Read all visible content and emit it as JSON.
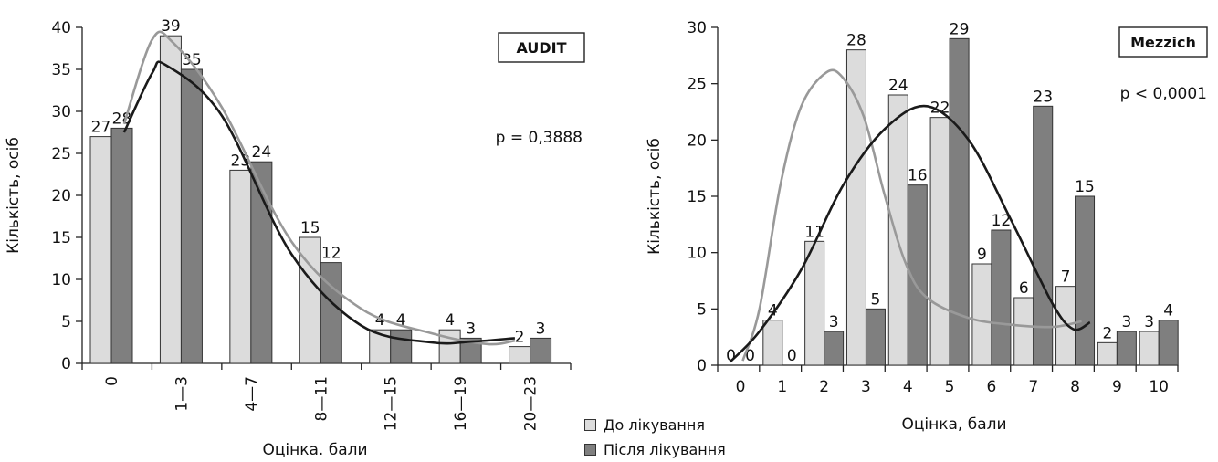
{
  "legend": {
    "items": [
      {
        "label": "До лікування",
        "color": "#dcdcdc"
      },
      {
        "label": "Після лікування",
        "color": "#7f7f7f"
      }
    ]
  },
  "chart_data": [
    {
      "type": "bar",
      "title": "AUDIT",
      "annotation": "p = 0,3888",
      "xlabel": "Оцінка. бали",
      "ylabel": "Кількість, осіб",
      "categories": [
        "0",
        "1—3",
        "4—7",
        "8—11",
        "12—15",
        "16—19",
        "20—23"
      ],
      "ylim": [
        0,
        40
      ],
      "yticks": [
        0,
        5,
        10,
        15,
        20,
        25,
        30,
        35,
        40
      ],
      "series": [
        {
          "name": "До лікування",
          "color": "#dcdcdc",
          "values": [
            27,
            39,
            23,
            15,
            4,
            4,
            2
          ]
        },
        {
          "name": "Після лікування",
          "color": "#7f7f7f",
          "values": [
            28,
            35,
            24,
            12,
            4,
            3,
            3
          ]
        }
      ],
      "curves": [
        {
          "series": "До лікування",
          "color": "#999999",
          "points": [
            [
              0.6,
              28.5
            ],
            [
              1.0,
              38.5
            ],
            [
              1.3,
              38.2
            ],
            [
              2.0,
              30.5
            ],
            [
              3.0,
              14.5
            ],
            [
              4.0,
              6.5
            ],
            [
              5.0,
              3.6
            ],
            [
              5.8,
              2.3
            ],
            [
              6.2,
              2.7
            ]
          ]
        },
        {
          "series": "Після лікування",
          "color": "#1a1a1a",
          "points": [
            [
              0.6,
              27.5
            ],
            [
              1.0,
              34.5
            ],
            [
              1.2,
              35.5
            ],
            [
              2.0,
              29.5
            ],
            [
              3.0,
              13.0
            ],
            [
              4.0,
              4.5
            ],
            [
              5.0,
              2.5
            ],
            [
              5.6,
              2.6
            ],
            [
              6.2,
              3.0
            ]
          ]
        }
      ]
    },
    {
      "type": "bar",
      "title": "Mezzich",
      "annotation": "p < 0,0001",
      "xlabel": "Оцінка, бали",
      "ylabel": "Кількість, осіб",
      "categories": [
        "0",
        "1",
        "2",
        "3",
        "4",
        "5",
        "6",
        "7",
        "8",
        "9",
        "10"
      ],
      "ylim": [
        0,
        30
      ],
      "yticks": [
        0,
        5,
        10,
        15,
        20,
        25,
        30
      ],
      "series": [
        {
          "name": "До лікування",
          "color": "#dcdcdc",
          "values": [
            0,
            4,
            11,
            28,
            24,
            22,
            9,
            6,
            7,
            2,
            3
          ]
        },
        {
          "name": "Після лікування",
          "color": "#7f7f7f",
          "values": [
            0,
            0,
            3,
            5,
            16,
            29,
            12,
            23,
            15,
            3,
            4
          ]
        }
      ],
      "curves": [
        {
          "series": "До лікування",
          "color": "#999999",
          "points": [
            [
              0.6,
              0.4
            ],
            [
              1.0,
              5.0
            ],
            [
              1.5,
              16.0
            ],
            [
              2.0,
              23.0
            ],
            [
              2.6,
              26.0
            ],
            [
              3.0,
              25.5
            ],
            [
              3.5,
              22.0
            ],
            [
              4.0,
              15.0
            ],
            [
              4.5,
              9.0
            ],
            [
              5.0,
              6.0
            ],
            [
              6.0,
              4.2
            ],
            [
              7.0,
              3.6
            ],
            [
              8.0,
              3.4
            ],
            [
              8.7,
              3.9
            ]
          ]
        },
        {
          "series": "Після лікування",
          "color": "#1a1a1a",
          "points": [
            [
              0.3,
              0.3
            ],
            [
              1.0,
              3.0
            ],
            [
              2.0,
              8.5
            ],
            [
              3.0,
              16.0
            ],
            [
              4.0,
              21.0
            ],
            [
              5.0,
              23.0
            ],
            [
              6.0,
              20.0
            ],
            [
              7.0,
              13.0
            ],
            [
              8.0,
              5.5
            ],
            [
              8.5,
              3.2
            ],
            [
              8.9,
              3.8
            ]
          ]
        }
      ]
    }
  ]
}
